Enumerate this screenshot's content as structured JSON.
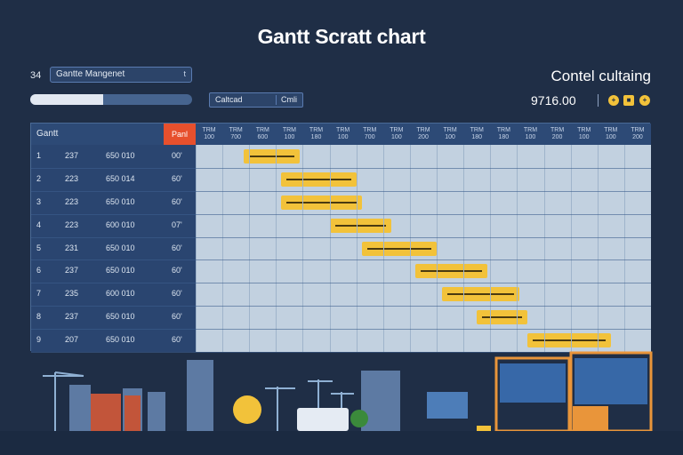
{
  "title": "Gantt Scratt chart",
  "toolbar": {
    "row_number": "34",
    "project_name": "Gantte Mangenet",
    "project_caret": "t",
    "progress": 0.45,
    "search_left": "Caltcad",
    "search_right": "Cmli"
  },
  "header": {
    "company": "Contel cultaing",
    "amount": "9716.00",
    "icons": [
      "+",
      "■",
      "+"
    ]
  },
  "colors": {
    "background": "#1f2e46",
    "bar": "#f2c23a",
    "accent": "#e7502d",
    "grid_bg": "#c2d1e0"
  },
  "grid": {
    "left_header": "Gantt",
    "accent_header": "Panl",
    "months": [
      "TRM 100",
      "TRM 700",
      "TRM 600",
      "TRM 100",
      "TRM 180",
      "TRM 100",
      "TRM 700",
      "TRM 100",
      "TRM 200",
      "TRM 100",
      "TRM 180",
      "TRM 180",
      "TRM 100",
      "TRM 200",
      "TRM 100",
      "TRM 100",
      "TRM 200"
    ],
    "rows": [
      {
        "id": "1",
        "year": "237",
        "cost": "650 010",
        "tag": "00'"
      },
      {
        "id": "2",
        "year": "223",
        "cost": "650 014",
        "tag": "60'"
      },
      {
        "id": "3",
        "year": "223",
        "cost": "650 010",
        "tag": "60'"
      },
      {
        "id": "4",
        "year": "223",
        "cost": "600 010",
        "tag": "07'"
      },
      {
        "id": "5",
        "year": "231",
        "cost": "650 010",
        "tag": "60'"
      },
      {
        "id": "6",
        "year": "237",
        "cost": "650 010",
        "tag": "60'"
      },
      {
        "id": "7",
        "year": "235",
        "cost": "600 010",
        "tag": "60'"
      },
      {
        "id": "8",
        "year": "237",
        "cost": "650 010",
        "tag": "60'"
      },
      {
        "id": "9",
        "year": "207",
        "cost": "650 010",
        "tag": "60'"
      }
    ]
  },
  "chart_data": {
    "type": "bar",
    "title": "Gantt Scratt chart",
    "xlabel": "",
    "ylabel": "",
    "categories": [
      "1",
      "2",
      "3",
      "4",
      "5",
      "6",
      "7",
      "8",
      "9"
    ],
    "series": [
      {
        "values": [
          [
            1.8,
            3.9
          ],
          [
            3.2,
            6.0
          ],
          [
            3.2,
            6.2
          ],
          [
            5.0,
            7.3
          ],
          [
            6.2,
            9.0
          ],
          [
            8.2,
            10.9
          ],
          [
            9.2,
            12.1
          ],
          [
            10.5,
            12.4
          ],
          [
            12.4,
            15.5
          ]
        ]
      }
    ],
    "xlim": [
      0,
      17
    ],
    "grid": true,
    "legend": "none"
  }
}
